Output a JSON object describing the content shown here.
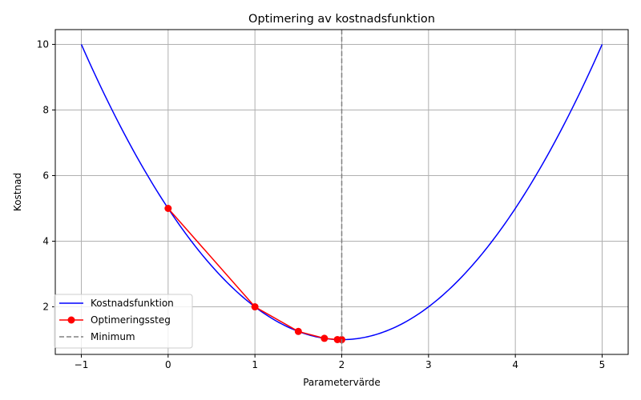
{
  "chart_data": {
    "type": "line",
    "title": "Optimering av kostnadsfunktion",
    "xlabel": "Parametervärde",
    "ylabel": "Kostnad",
    "xlim": [
      -1.3,
      5.3
    ],
    "ylim": [
      0.55,
      10.45
    ],
    "xticks": [
      -1,
      0,
      1,
      2,
      3,
      4,
      5
    ],
    "yticks": [
      2,
      4,
      6,
      8,
      10
    ],
    "grid": true,
    "legend_position": "lower-left",
    "series": [
      {
        "name": "Kostnadsfunktion",
        "kind": "curve",
        "function": "(x-2)^2+1",
        "x_range": [
          -1,
          5
        ],
        "color": "#0000ff"
      },
      {
        "name": "Optimeringssteg",
        "kind": "line-markers",
        "color": "#ff0000",
        "x": [
          0,
          1,
          1.5,
          1.8,
          1.95,
          2.0
        ],
        "y": [
          5,
          2,
          1.25,
          1.04,
          1.0025,
          1.0
        ]
      },
      {
        "name": "Minimum",
        "kind": "vline",
        "x": 2,
        "color": "#808080",
        "style": "dashed"
      }
    ]
  }
}
